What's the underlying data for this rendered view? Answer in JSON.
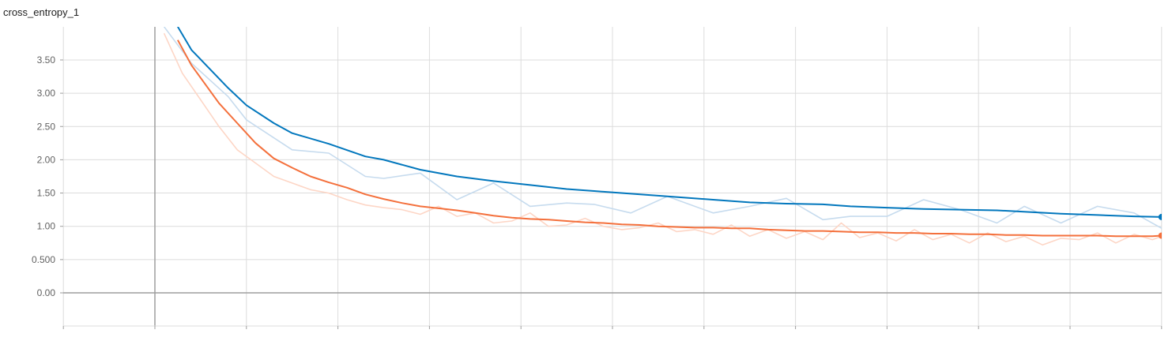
{
  "chart_data": {
    "type": "line",
    "title": "cross_entropy_1",
    "xlabel": "",
    "ylabel": "",
    "x_range": [
      -1,
      11
    ],
    "ylim": [
      -0.5,
      4.0
    ],
    "y_ticks": [
      "0.00",
      "0.500",
      "1.00",
      "1.50",
      "2.00",
      "2.50",
      "3.00",
      "3.50"
    ],
    "y_tick_values": [
      0,
      0.5,
      1,
      1.5,
      2,
      2.5,
      3,
      3.5
    ],
    "grid": true,
    "colors": {
      "blue_smoothed": "#0277bd",
      "blue_raw": "#c6dbee",
      "orange_smoothed": "#f4703c",
      "orange_raw": "#fdd6c6",
      "grid": "#dcdcdc",
      "axis": "#9e9e9e"
    },
    "series": [
      {
        "role": "raw",
        "color_key": "blue_raw",
        "x": [
          0.1,
          0.4,
          0.8,
          1.0,
          1.5,
          1.9,
          2.3,
          2.5,
          2.9,
          3.3,
          3.7,
          4.1,
          4.5,
          4.8,
          5.2,
          5.6,
          6.1,
          6.5,
          6.9,
          7.3,
          7.6,
          8.0,
          8.4,
          8.8,
          9.2,
          9.5,
          9.9,
          10.3,
          10.7,
          11.0
        ],
        "y": [
          4.0,
          3.45,
          2.95,
          2.6,
          2.15,
          2.1,
          1.75,
          1.72,
          1.8,
          1.4,
          1.65,
          1.3,
          1.35,
          1.33,
          1.2,
          1.45,
          1.2,
          1.3,
          1.42,
          1.1,
          1.15,
          1.15,
          1.4,
          1.25,
          1.05,
          1.3,
          1.05,
          1.3,
          1.2,
          0.97
        ]
      },
      {
        "role": "smoothed",
        "color_key": "blue_smoothed",
        "x": [
          0.25,
          0.4,
          0.8,
          1.0,
          1.3,
          1.5,
          1.9,
          2.3,
          2.5,
          2.9,
          3.3,
          3.7,
          4.1,
          4.5,
          4.8,
          5.2,
          5.6,
          6.1,
          6.5,
          6.9,
          7.3,
          7.6,
          8.0,
          8.4,
          8.8,
          9.2,
          9.5,
          9.9,
          10.3,
          10.7,
          11.0
        ],
        "y": [
          4.0,
          3.65,
          3.08,
          2.82,
          2.55,
          2.4,
          2.24,
          2.05,
          2.0,
          1.85,
          1.75,
          1.68,
          1.62,
          1.56,
          1.53,
          1.49,
          1.45,
          1.4,
          1.36,
          1.34,
          1.33,
          1.3,
          1.28,
          1.26,
          1.25,
          1.24,
          1.22,
          1.19,
          1.17,
          1.15,
          1.14
        ]
      },
      {
        "role": "raw",
        "color_key": "orange_raw",
        "x": [
          0.1,
          0.3,
          0.5,
          0.7,
          0.9,
          1.1,
          1.3,
          1.5,
          1.7,
          1.9,
          2.1,
          2.3,
          2.5,
          2.7,
          2.9,
          3.1,
          3.3,
          3.5,
          3.7,
          3.9,
          4.1,
          4.3,
          4.5,
          4.7,
          4.9,
          5.1,
          5.3,
          5.5,
          5.7,
          5.9,
          6.1,
          6.3,
          6.5,
          6.7,
          6.9,
          7.1,
          7.3,
          7.5,
          7.7,
          7.9,
          8.1,
          8.3,
          8.5,
          8.7,
          8.9,
          9.1,
          9.3,
          9.5,
          9.7,
          9.9,
          10.1,
          10.3,
          10.5,
          10.7,
          10.9,
          11.0
        ],
        "y": [
          3.9,
          3.3,
          2.9,
          2.5,
          2.15,
          1.95,
          1.75,
          1.65,
          1.55,
          1.5,
          1.4,
          1.32,
          1.28,
          1.25,
          1.18,
          1.3,
          1.15,
          1.2,
          1.05,
          1.08,
          1.2,
          1.0,
          1.02,
          1.12,
          1.0,
          0.95,
          0.98,
          1.05,
          0.92,
          0.95,
          0.88,
          1.02,
          0.85,
          0.95,
          0.82,
          0.92,
          0.8,
          1.05,
          0.83,
          0.9,
          0.78,
          0.95,
          0.8,
          0.88,
          0.75,
          0.9,
          0.77,
          0.85,
          0.72,
          0.82,
          0.8,
          0.9,
          0.75,
          0.88,
          0.8,
          0.85
        ]
      },
      {
        "role": "smoothed",
        "color_key": "orange_smoothed",
        "x": [
          0.25,
          0.4,
          0.7,
          0.9,
          1.1,
          1.3,
          1.5,
          1.7,
          1.9,
          2.1,
          2.3,
          2.5,
          2.7,
          2.9,
          3.1,
          3.3,
          3.5,
          3.7,
          3.9,
          4.1,
          4.3,
          4.5,
          4.7,
          4.9,
          5.1,
          5.3,
          5.5,
          5.7,
          5.9,
          6.1,
          6.3,
          6.5,
          6.7,
          6.9,
          7.1,
          7.3,
          7.5,
          7.7,
          7.9,
          8.1,
          8.3,
          8.5,
          8.7,
          8.9,
          9.1,
          9.3,
          9.5,
          9.7,
          9.9,
          10.1,
          10.3,
          10.5,
          10.7,
          10.9,
          11.0
        ],
        "y": [
          3.8,
          3.42,
          2.85,
          2.55,
          2.25,
          2.02,
          1.88,
          1.75,
          1.66,
          1.58,
          1.48,
          1.41,
          1.35,
          1.3,
          1.27,
          1.24,
          1.2,
          1.16,
          1.13,
          1.11,
          1.1,
          1.08,
          1.06,
          1.05,
          1.03,
          1.02,
          1.0,
          0.99,
          0.98,
          0.98,
          0.97,
          0.97,
          0.95,
          0.94,
          0.93,
          0.93,
          0.92,
          0.91,
          0.91,
          0.9,
          0.9,
          0.89,
          0.89,
          0.88,
          0.88,
          0.87,
          0.87,
          0.86,
          0.86,
          0.86,
          0.86,
          0.85,
          0.85,
          0.85,
          0.86
        ]
      }
    ]
  }
}
